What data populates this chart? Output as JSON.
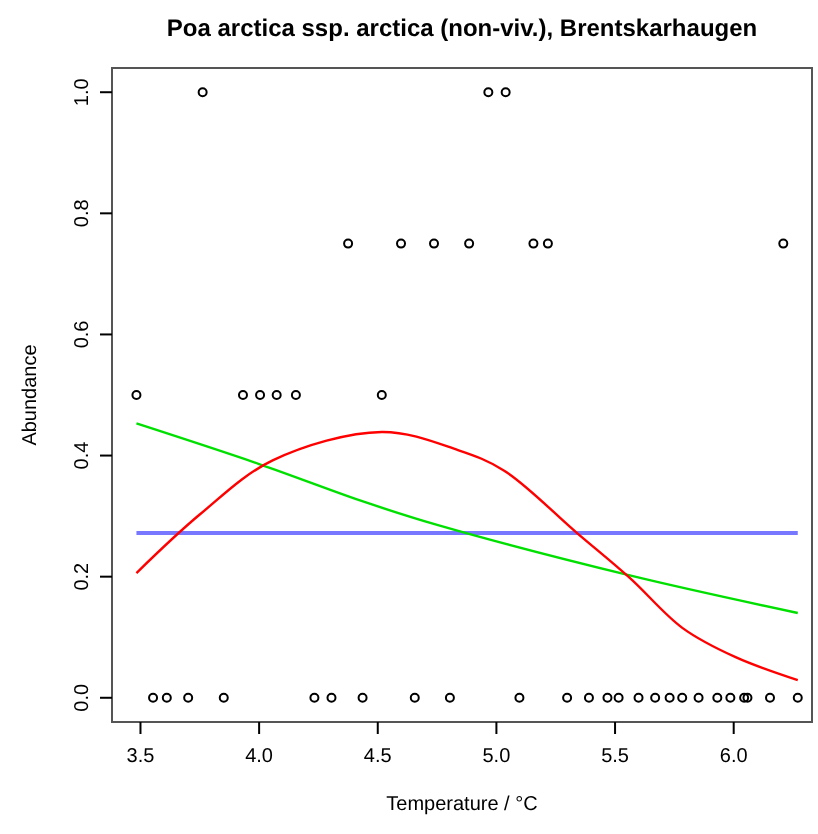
{
  "chart_data": {
    "type": "scatter",
    "title": "Poa arctica ssp. arctica (non-viv.), Brentskarhaugen",
    "xlabel": "Temperature / °C",
    "ylabel": "Abundance",
    "xlim": [
      3.38,
      6.33
    ],
    "ylim": [
      -0.04,
      1.04
    ],
    "xticks": [
      3.5,
      {
        "value": 4,
        "label": "4.0"
      },
      4.5,
      {
        "value": 5,
        "label": "5.0"
      },
      5.5,
      {
        "value": 6,
        "label": "6.0"
      }
    ],
    "yticks": [
      {
        "value": 0,
        "label": "0.0"
      },
      0.2,
      0.4,
      0.6,
      0.8,
      {
        "value": 1,
        "label": "1.0"
      }
    ],
    "grid": false,
    "series": [
      {
        "marker": "circle",
        "color": "#000000",
        "x": [
          3.762,
          4.966,
          5.039,
          4.375,
          4.598,
          4.737,
          4.885,
          5.156,
          5.217,
          6.209,
          3.483,
          3.932,
          4.004,
          4.074,
          4.155,
          4.517,
          3.553,
          3.611,
          3.701,
          3.851,
          4.233,
          4.305,
          4.436,
          4.656,
          4.804,
          5.097,
          5.298,
          5.39,
          5.468,
          5.515,
          5.599,
          5.669,
          5.73,
          5.783,
          5.852,
          5.931,
          5.986,
          6.044,
          6.058,
          6.153,
          6.27
        ],
        "values": [
          1,
          1,
          1,
          0.75,
          0.75,
          0.75,
          0.75,
          0.75,
          0.75,
          0.75,
          0.5,
          0.5,
          0.5,
          0.5,
          0.5,
          0.5,
          0,
          0,
          0,
          0,
          0,
          0,
          0,
          0,
          0,
          0,
          0,
          0,
          0,
          0,
          0,
          0,
          0,
          0,
          0,
          0,
          0,
          0,
          0,
          0,
          0
        ]
      },
      {
        "type": "line",
        "marker": "none",
        "color": "#7777ff",
        "x": [
          3.483,
          6.27
        ],
        "values": [
          0.272,
          0.272
        ]
      },
      {
        "type": "line",
        "marker": "none",
        "color": "#00e000",
        "x": [
          3.483,
          4.0,
          4.447,
          4.754,
          5.562,
          6.27
        ],
        "values": [
          0.453,
          0.386,
          0.323,
          0.285,
          0.202,
          0.14
        ]
      },
      {
        "type": "line",
        "marker": "none",
        "color": "#ff0000",
        "x": [
          3.483,
          3.751,
          4.057,
          4.517,
          4.838,
          5.033,
          5.34,
          5.562,
          5.785,
          6.008,
          6.27
        ],
        "values": [
          0.206,
          0.303,
          0.392,
          0.439,
          0.409,
          0.375,
          0.272,
          0.198,
          0.115,
          0.067,
          0.029
        ]
      }
    ]
  }
}
